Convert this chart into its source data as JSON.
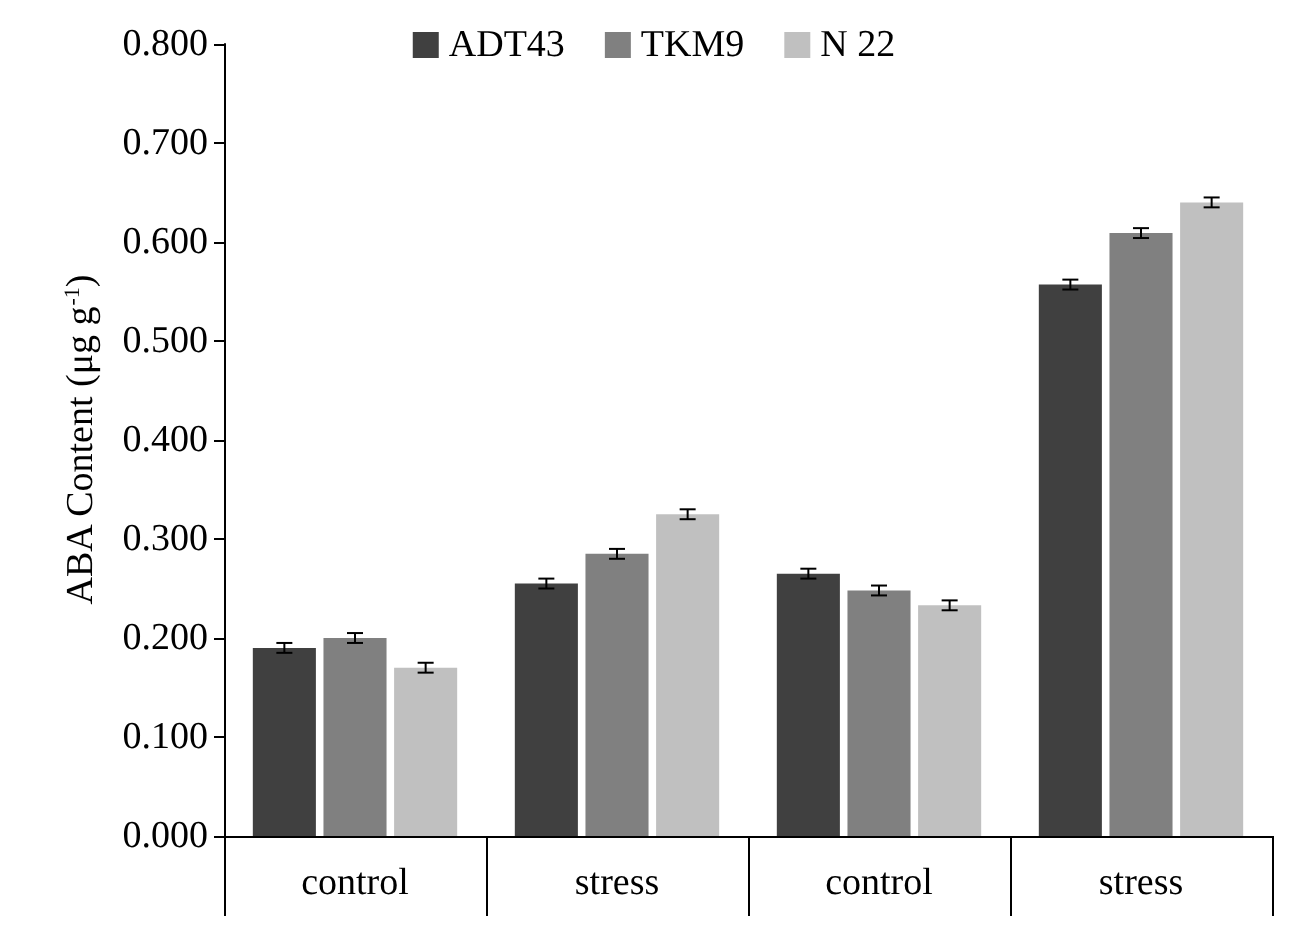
{
  "chart_data": {
    "type": "bar",
    "ylabel": "ABA Content (μg g$^{-1}$)",
    "categories": [
      "control",
      "stress",
      "control",
      "stress"
    ],
    "series": [
      {
        "name": "ADT43",
        "color": "#404040",
        "values": [
          0.19,
          0.255,
          0.265,
          0.557
        ],
        "errors": [
          0.005,
          0.005,
          0.005,
          0.005
        ]
      },
      {
        "name": "TKM9",
        "color": "#808080",
        "values": [
          0.2,
          0.285,
          0.248,
          0.609
        ],
        "errors": [
          0.005,
          0.005,
          0.005,
          0.005
        ]
      },
      {
        "name": "N 22",
        "color": "#c0c0c0",
        "values": [
          0.17,
          0.325,
          0.233,
          0.64
        ],
        "errors": [
          0.005,
          0.005,
          0.005,
          0.005
        ]
      }
    ],
    "ylim": [
      0,
      0.8
    ],
    "yticks": [
      {
        "value": 0,
        "label": "0.000"
      },
      {
        "value": 0.1,
        "label": "0.100"
      },
      {
        "value": 0.2,
        "label": "0.200"
      },
      {
        "value": 0.3,
        "label": "0.300"
      },
      {
        "value": 0.4,
        "label": "0.400"
      },
      {
        "value": 0.5,
        "label": "0.500"
      },
      {
        "value": 0.6,
        "label": "0.600"
      },
      {
        "value": 0.7,
        "label": "0.700"
      },
      {
        "value": 0.8,
        "label": "0.800"
      }
    ],
    "grid": false,
    "legend": "top"
  }
}
